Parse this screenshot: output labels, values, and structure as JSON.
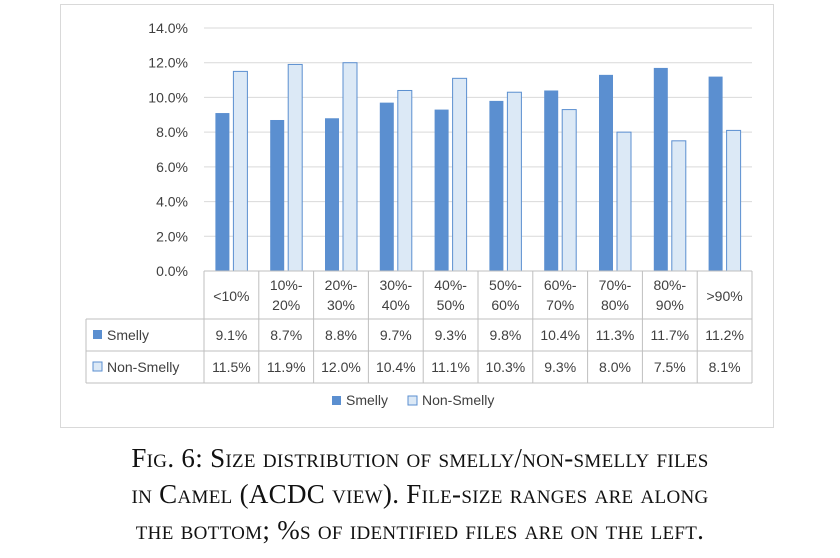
{
  "chart_data": {
    "type": "bar",
    "categories": [
      "<10%",
      "10%-20%",
      "20%-30%",
      "30%-40%",
      "40%-50%",
      "50%-60%",
      "60%-70%",
      "70%-80%",
      "80%-90%",
      ">90%"
    ],
    "category_lines": [
      [
        "<10%"
      ],
      [
        "10%-",
        "20%"
      ],
      [
        "20%-",
        "30%"
      ],
      [
        "30%-",
        "40%"
      ],
      [
        "40%-",
        "50%"
      ],
      [
        "50%-",
        "60%"
      ],
      [
        "60%-",
        "70%"
      ],
      [
        "70%-",
        "80%"
      ],
      [
        "80%-",
        "90%"
      ],
      [
        ">90%"
      ]
    ],
    "series": [
      {
        "name": "Smelly",
        "values": [
          9.1,
          8.7,
          8.8,
          9.7,
          9.3,
          9.8,
          10.4,
          11.3,
          11.7,
          11.2
        ],
        "labels": [
          "9.1%",
          "8.7%",
          "8.8%",
          "9.7%",
          "9.3%",
          "9.8%",
          "10.4%",
          "11.3%",
          "11.7%",
          "11.2%"
        ],
        "color": "#5b8fd0"
      },
      {
        "name": "Non-Smelly",
        "values": [
          11.5,
          11.9,
          12.0,
          10.4,
          11.1,
          10.3,
          9.3,
          8.0,
          7.5,
          8.1
        ],
        "labels": [
          "11.5%",
          "11.9%",
          "12.0%",
          "10.4%",
          "11.1%",
          "10.3%",
          "9.3%",
          "8.0%",
          "7.5%",
          "8.1%"
        ],
        "color": "#dce9f6",
        "stroke": "#5b8fd0"
      }
    ],
    "yticks": [
      "0.0%",
      "2.0%",
      "4.0%",
      "6.0%",
      "8.0%",
      "10.0%",
      "12.0%",
      "14.0%"
    ],
    "ylim": [
      0,
      14
    ],
    "grid": true,
    "legend_position": "bottom",
    "data_table": true
  },
  "caption": {
    "lines": [
      "Fig. 6: Size distribution of smelly/non-smelly files",
      "in Camel (ACDC view). File-size ranges are along",
      "the bottom; %s of identified files are on the left."
    ]
  }
}
